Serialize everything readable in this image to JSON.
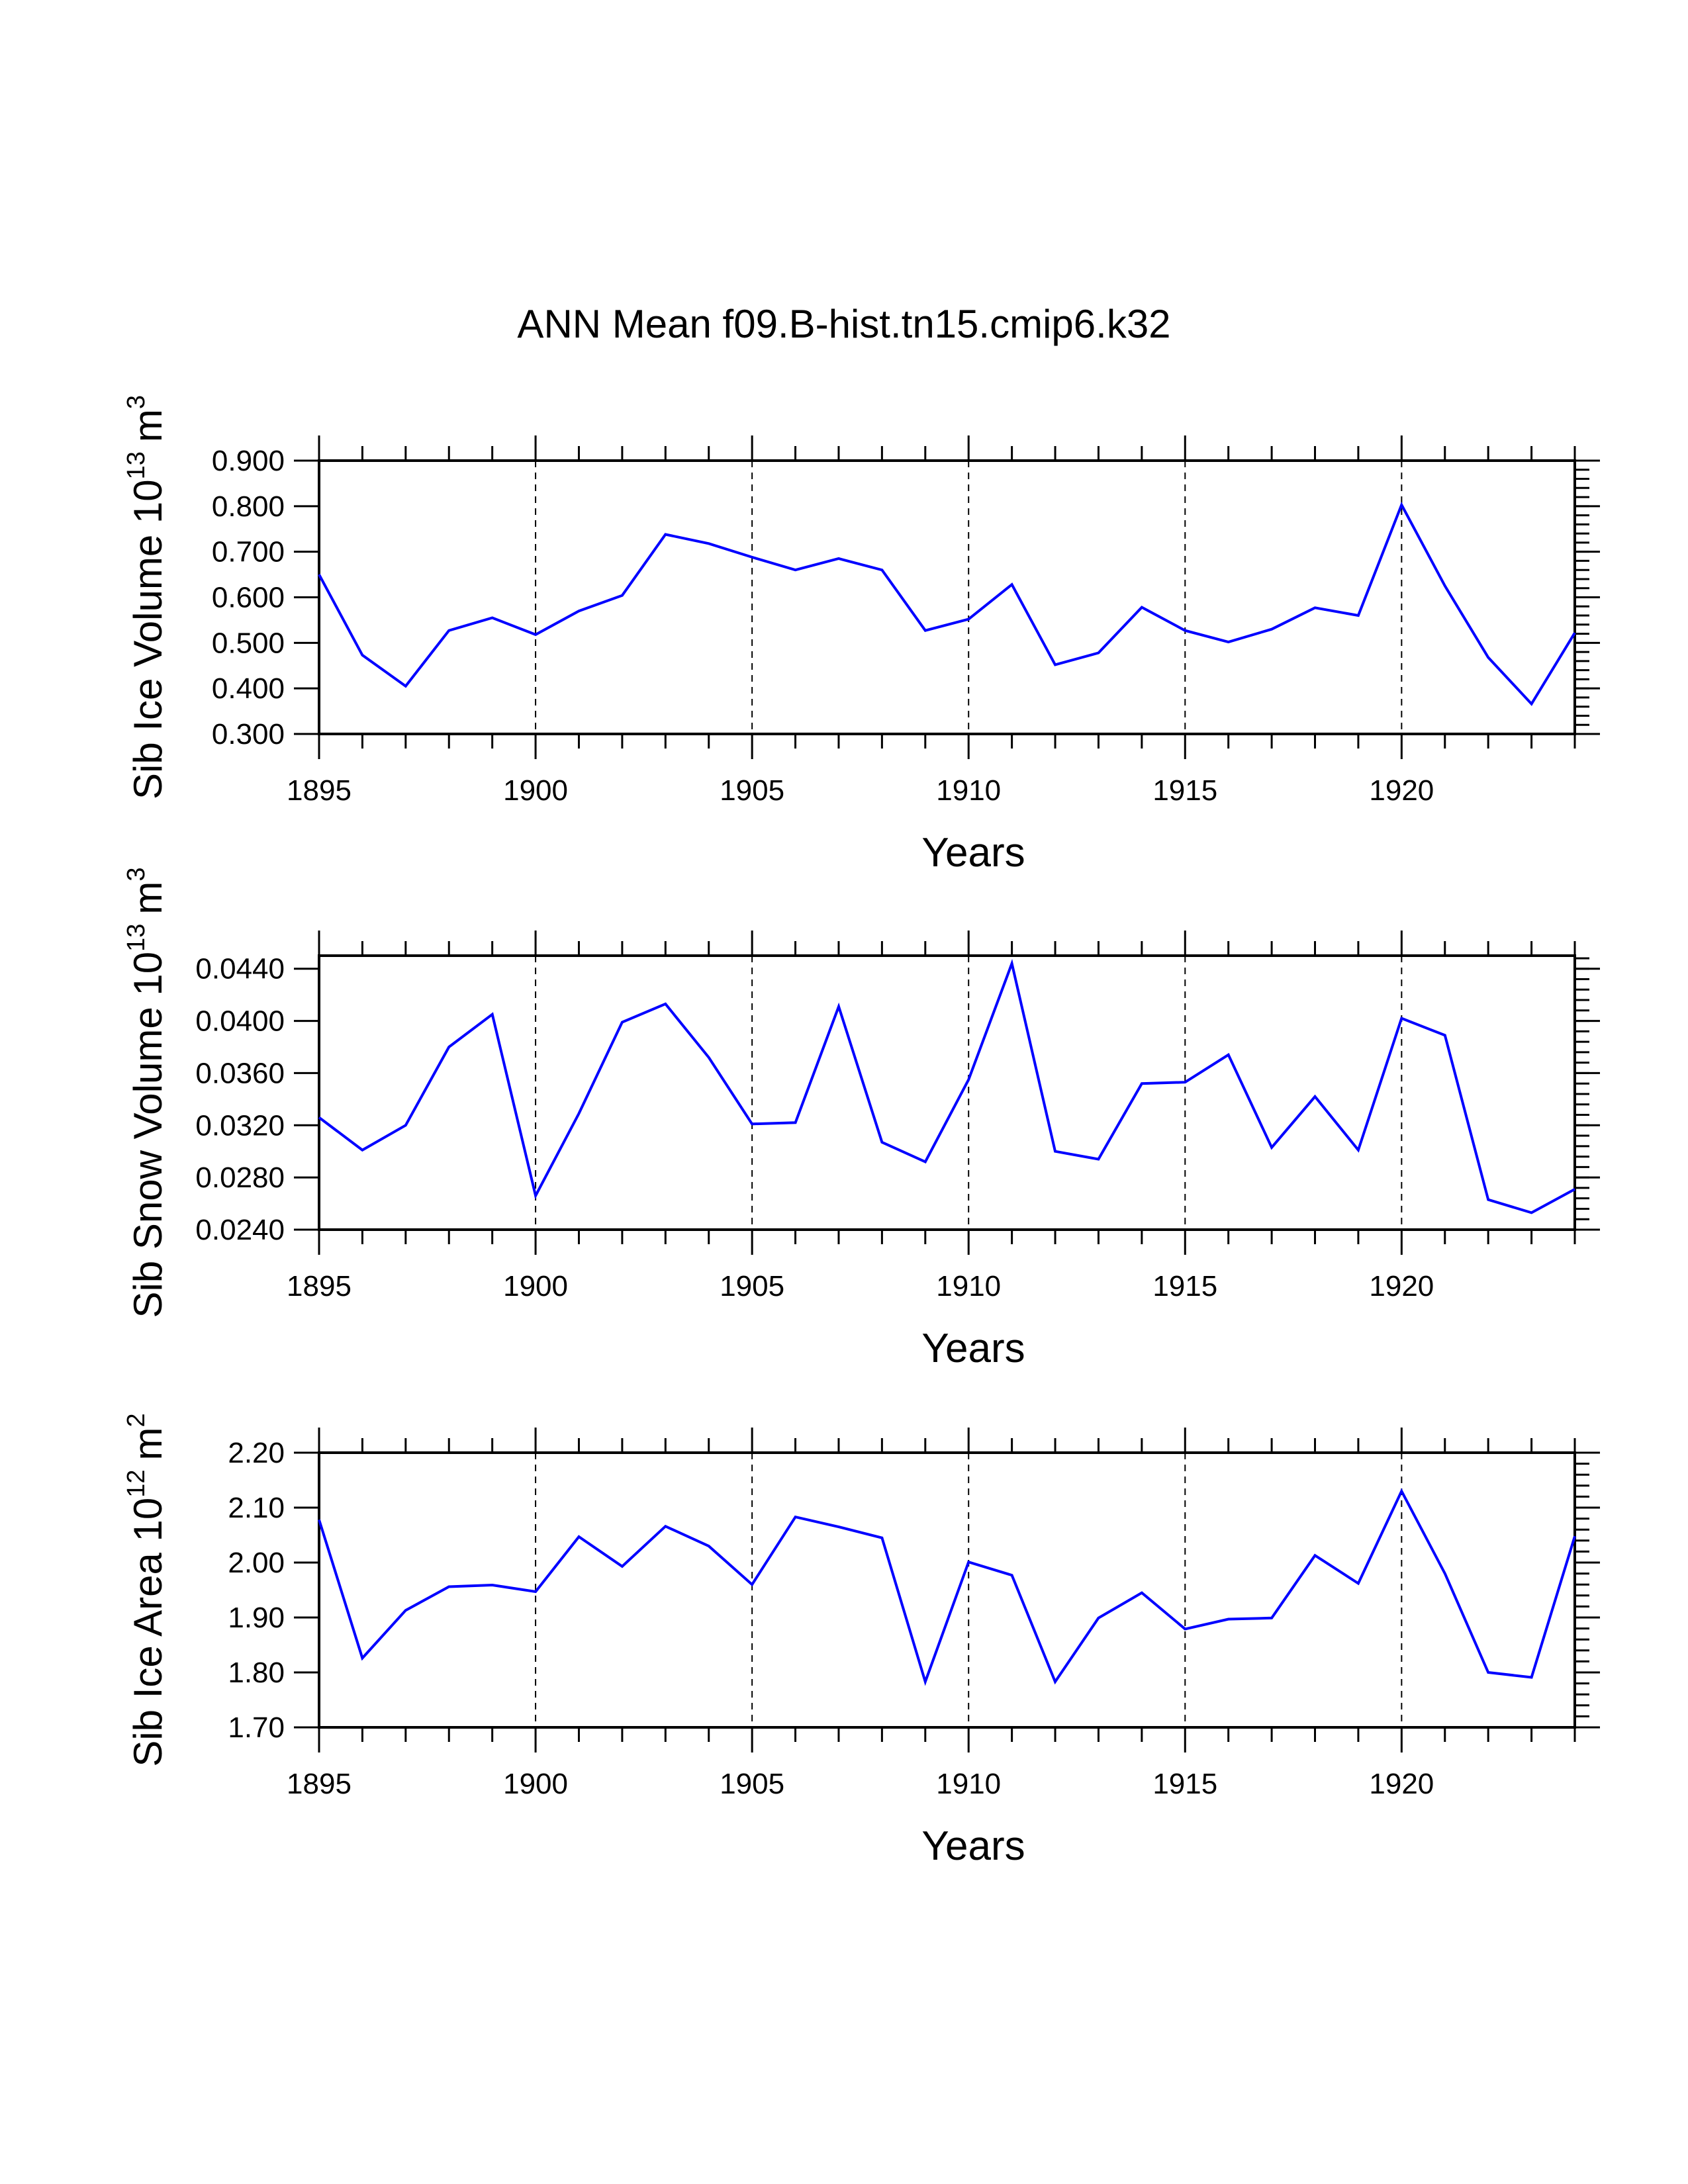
{
  "page": {
    "title": "ANN Mean f09.B-hist.tn15.cmip6.k32"
  },
  "style": {
    "line_color": "#0000ff",
    "axis_color": "#000000",
    "grid_color": "#000000"
  },
  "chart_data": [
    {
      "type": "line",
      "title": "",
      "xlabel": "Years",
      "ylabel": "Sib Ice Volume 10^13 m^3",
      "ylabel_base": "Sib Ice Volume 10",
      "ylabel_exp": "13",
      "ylabel_unit": "m",
      "ylabel_unit_exp": "3",
      "xlim": [
        1895,
        1924
      ],
      "ylim": [
        0.3,
        0.9
      ],
      "xticks": [
        1895,
        1900,
        1905,
        1910,
        1915,
        1920
      ],
      "yticks": [
        0.3,
        0.4,
        0.5,
        0.6,
        0.7,
        0.8,
        0.9
      ],
      "ytick_labels": [
        "0.300",
        "0.400",
        "0.500",
        "0.600",
        "0.700",
        "0.800",
        "0.900"
      ],
      "y_minor_step": 0.02,
      "grid_x": [
        1900,
        1905,
        1910,
        1915,
        1920
      ],
      "x": [
        1895,
        1896,
        1897,
        1898,
        1899,
        1900,
        1901,
        1902,
        1903,
        1904,
        1905,
        1906,
        1907,
        1908,
        1909,
        1910,
        1911,
        1912,
        1913,
        1914,
        1915,
        1916,
        1917,
        1918,
        1919,
        1920,
        1921,
        1922,
        1923,
        1924
      ],
      "series": [
        {
          "name": "Sib Ice Volume",
          "values": [
            0.65,
            0.473,
            0.405,
            0.527,
            0.555,
            0.518,
            0.57,
            0.604,
            0.738,
            0.718,
            0.688,
            0.66,
            0.685,
            0.66,
            0.527,
            0.552,
            0.628,
            0.452,
            0.478,
            0.578,
            0.527,
            0.502,
            0.53,
            0.577,
            0.56,
            0.803,
            0.625,
            0.468,
            0.366,
            0.522
          ]
        }
      ]
    },
    {
      "type": "line",
      "title": "",
      "xlabel": "Years",
      "ylabel": "Sib Snow Volume 10^13 m^3",
      "ylabel_base": "Sib Snow Volume 10",
      "ylabel_exp": "13",
      "ylabel_unit": "m",
      "ylabel_unit_exp": "3",
      "xlim": [
        1895,
        1924
      ],
      "ylim": [
        0.024,
        0.045
      ],
      "xticks": [
        1895,
        1900,
        1905,
        1910,
        1915,
        1920
      ],
      "yticks": [
        0.024,
        0.028,
        0.032,
        0.036,
        0.04,
        0.044
      ],
      "ytick_labels": [
        "0.0240",
        "0.0280",
        "0.0320",
        "0.0360",
        "0.0400",
        "0.0440"
      ],
      "y_minor_step": 0.0008,
      "grid_x": [
        1900,
        1905,
        1910,
        1915,
        1920
      ],
      "x": [
        1895,
        1896,
        1897,
        1898,
        1899,
        1900,
        1901,
        1902,
        1903,
        1904,
        1905,
        1906,
        1907,
        1908,
        1909,
        1910,
        1911,
        1912,
        1913,
        1914,
        1915,
        1916,
        1917,
        1918,
        1919,
        1920,
        1921,
        1922,
        1923,
        1924
      ],
      "series": [
        {
          "name": "Sib Snow Volume",
          "values": [
            0.0326,
            0.0301,
            0.032,
            0.038,
            0.0405,
            0.0266,
            0.0329,
            0.0399,
            0.0413,
            0.0372,
            0.0321,
            0.0322,
            0.0411,
            0.0307,
            0.0292,
            0.0355,
            0.0444,
            0.03,
            0.0294,
            0.0352,
            0.0353,
            0.0374,
            0.0303,
            0.0342,
            0.0301,
            0.0402,
            0.0389,
            0.0263,
            0.0253,
            0.0271
          ]
        }
      ]
    },
    {
      "type": "line",
      "title": "",
      "xlabel": "Years",
      "ylabel": "Sib Ice Area 10^12 m^2",
      "ylabel_base": "Sib Ice Area 10",
      "ylabel_exp": "12",
      "ylabel_unit": "m",
      "ylabel_unit_exp": "2",
      "xlim": [
        1895,
        1924
      ],
      "ylim": [
        1.7,
        2.2
      ],
      "xticks": [
        1895,
        1900,
        1905,
        1910,
        1915,
        1920
      ],
      "yticks": [
        1.7,
        1.8,
        1.9,
        2.0,
        2.1,
        2.2
      ],
      "ytick_labels": [
        "1.70",
        "1.80",
        "1.90",
        "2.00",
        "2.10",
        "2.20"
      ],
      "y_minor_step": 0.02,
      "grid_x": [
        1900,
        1905,
        1910,
        1915,
        1920
      ],
      "x": [
        1895,
        1896,
        1897,
        1898,
        1899,
        1900,
        1901,
        1902,
        1903,
        1904,
        1905,
        1906,
        1907,
        1908,
        1909,
        1910,
        1911,
        1912,
        1913,
        1914,
        1915,
        1916,
        1917,
        1918,
        1919,
        1920,
        1921,
        1922,
        1923,
        1924
      ],
      "series": [
        {
          "name": "Sib Ice Area",
          "values": [
            2.078,
            1.826,
            1.913,
            1.956,
            1.959,
            1.947,
            2.047,
            1.993,
            2.066,
            2.03,
            1.96,
            2.083,
            2.065,
            2.045,
            1.783,
            2.001,
            1.977,
            1.783,
            1.899,
            1.945,
            1.879,
            1.897,
            1.899,
            2.013,
            1.962,
            2.13,
            1.98,
            1.8,
            1.791,
            2.048
          ]
        }
      ]
    }
  ]
}
